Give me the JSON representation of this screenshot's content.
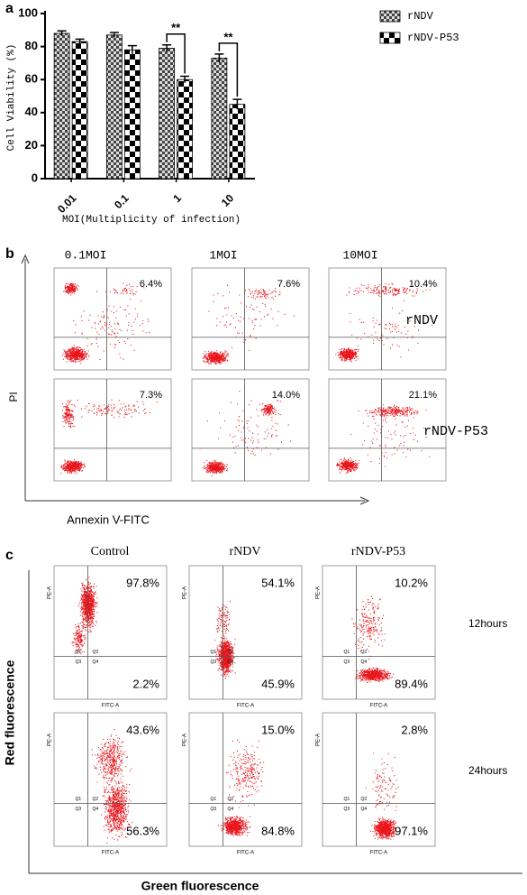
{
  "chart_data": {
    "type": "bar",
    "panel_label": "a",
    "categories": [
      "0.01",
      "0.1",
      "1",
      "10"
    ],
    "series": [
      {
        "name": "rNDV",
        "color": "#444444",
        "values": [
          88,
          87,
          79,
          73
        ],
        "errors": [
          1.5,
          1.5,
          2,
          2.5
        ]
      },
      {
        "name": "rNDV-P53",
        "color": "#000000",
        "values": [
          83,
          78,
          60,
          45
        ],
        "errors": [
          1.5,
          2.5,
          2,
          3
        ]
      }
    ],
    "ylim": [
      0,
      100
    ],
    "yticks": [
      0,
      20,
      40,
      60,
      80,
      100
    ],
    "ylabel": "Cell Viability (%)",
    "xlabel": "MOI(Multiplicity of infection)",
    "annotations": [
      {
        "text": "**",
        "category": "1"
      },
      {
        "text": "**",
        "category": "10"
      }
    ],
    "legend": "top-right"
  },
  "panel_b": {
    "label": "b",
    "columns": [
      "0.1MOI",
      "1MOI",
      "10MOI"
    ],
    "rows": [
      {
        "name": "rNDV",
        "percents": [
          "6.4%",
          "7.6%",
          "10.4%"
        ]
      },
      {
        "name": "rNDV-P53",
        "percents": [
          "7.3%",
          "14.0%",
          "21.1%"
        ]
      }
    ],
    "y_axis": "PI",
    "x_axis": "Annexin V-FITC"
  },
  "panel_c": {
    "label": "c",
    "columns": [
      "Control",
      "rNDV",
      "rNDV-P53"
    ],
    "rows": [
      {
        "name": "12hours",
        "upper": [
          "97.8%",
          "54.1%",
          "10.2%"
        ],
        "lower": [
          "2.2%",
          "45.9%",
          "89.4%"
        ]
      },
      {
        "name": "24hours",
        "upper": [
          "43.6%",
          "15.0%",
          "2.8%"
        ],
        "lower": [
          "56.3%",
          "84.8%",
          "97.1%"
        ]
      }
    ],
    "y_axis": "Red fluorescence",
    "x_axis": "Green fluorescence",
    "quadrants": [
      "Q1",
      "Q2",
      "Q3",
      "Q4"
    ],
    "plot_axes": [
      "FITC-A",
      "PE-A"
    ]
  }
}
